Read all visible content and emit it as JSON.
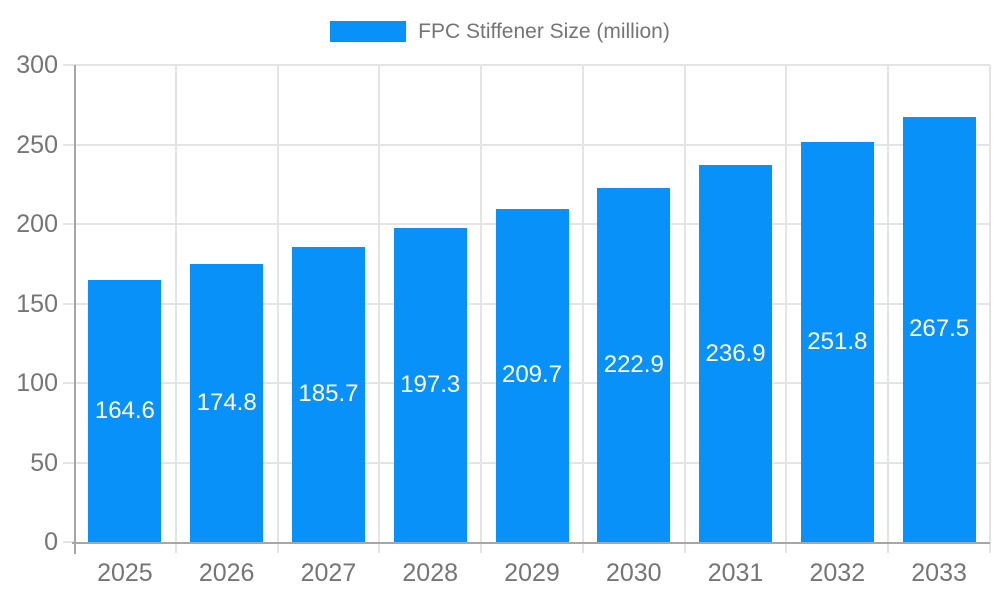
{
  "chart_data": {
    "type": "bar",
    "title": "FPC Stiffener Size (million)",
    "categories": [
      "2025",
      "2026",
      "2027",
      "2028",
      "2029",
      "2030",
      "2031",
      "2032",
      "2033"
    ],
    "values": [
      164.6,
      174.8,
      185.7,
      197.3,
      209.7,
      222.9,
      236.9,
      251.8,
      267.5
    ],
    "value_labels": [
      "164.6",
      "174.8",
      "185.7",
      "197.3",
      "209.7",
      "222.9",
      "236.9",
      "251.8",
      "267.5"
    ],
    "xlabel": "",
    "ylabel": "",
    "ylim": [
      0,
      300
    ],
    "yticks": [
      0,
      50,
      100,
      150,
      200,
      250,
      300
    ],
    "grid": true,
    "legend_position": "top-center",
    "legend_entries": [
      "FPC Stiffener Size (million)"
    ]
  },
  "colors": {
    "bar": "#0991FA",
    "grid": "#e4e4e4",
    "axis": "#a6a6a6",
    "text": "#757575",
    "bar_label": "#ffffff",
    "background": "#ffffff"
  }
}
